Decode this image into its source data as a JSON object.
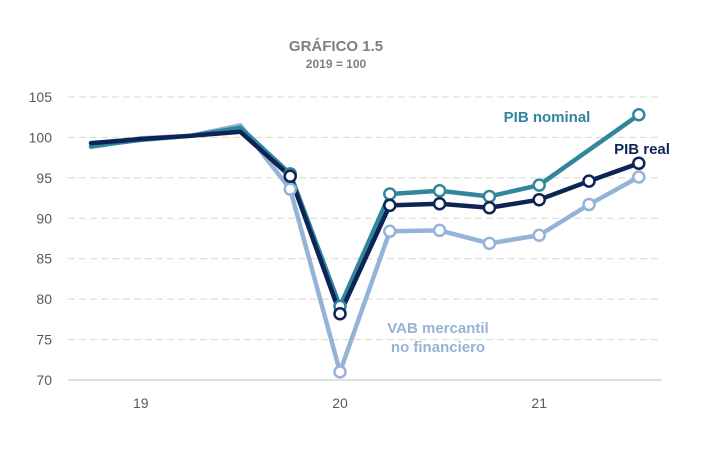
{
  "chart_data": {
    "type": "line",
    "title": "GRÁFICO 1.5",
    "subtitle": "2019 = 100",
    "xlabel": "",
    "ylabel": "",
    "ylim": [
      70,
      105
    ],
    "yticks": [
      70,
      75,
      80,
      85,
      90,
      95,
      100,
      105
    ],
    "grid": true,
    "x": [
      "19-I",
      "19-II",
      "19-III",
      "19-IV",
      "20-I",
      "20-II",
      "20-III",
      "20-IV",
      "21-I",
      "21-II",
      "21-III",
      "21-IV"
    ],
    "xtick_labels": [
      {
        "label": "19",
        "at": "19-II"
      },
      {
        "label": "20",
        "at": "20-II"
      },
      {
        "label": "21",
        "at": "21-II"
      }
    ],
    "series": [
      {
        "name": "PIB nominal",
        "color": "#31859c",
        "values": [
          98.9,
          99.7,
          100.2,
          101.2,
          95.5,
          79.1,
          93.0,
          93.4,
          92.7,
          94.1,
          null,
          102.8
        ],
        "markers": [
          false,
          false,
          false,
          false,
          true,
          true,
          true,
          true,
          true,
          true,
          false,
          true
        ]
      },
      {
        "name": "PIB real",
        "color": "#0d2456",
        "values": [
          99.3,
          99.8,
          100.2,
          100.7,
          95.2,
          78.2,
          91.6,
          91.8,
          91.3,
          92.3,
          94.6,
          96.8
        ],
        "markers": [
          false,
          false,
          false,
          false,
          true,
          true,
          true,
          true,
          true,
          true,
          true,
          true
        ]
      },
      {
        "name": "VAB mercantil no financiero",
        "color": "#95b3d7",
        "values": [
          98.8,
          99.9,
          100.2,
          101.5,
          93.6,
          71.0,
          88.4,
          88.5,
          86.9,
          87.9,
          91.7,
          95.1
        ],
        "markers": [
          false,
          false,
          false,
          false,
          true,
          true,
          true,
          true,
          true,
          true,
          true,
          true
        ]
      }
    ],
    "annotations": [
      {
        "series": "PIB nominal",
        "lines": [
          "PIB nominal"
        ]
      },
      {
        "series": "PIB real",
        "lines": [
          "PIB real"
        ]
      },
      {
        "series": "VAB mercantil no financiero",
        "lines": [
          "VAB mercantil",
          "no financiero"
        ]
      }
    ]
  }
}
